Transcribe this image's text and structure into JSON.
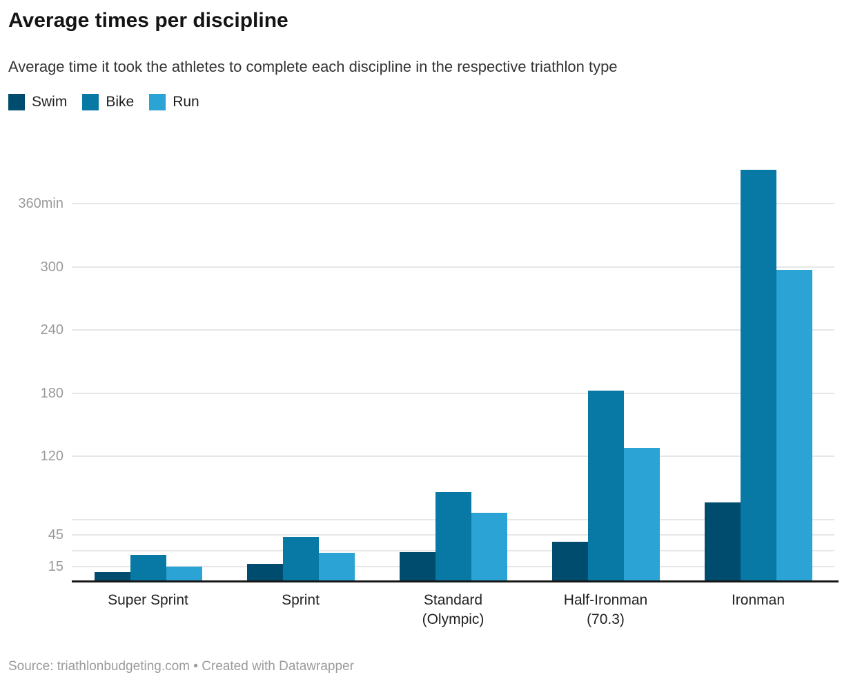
{
  "header": {
    "title": "Average times per discipline",
    "subtitle": "Average time it took the athletes to complete each discipline in the respective triathlon type"
  },
  "footer": {
    "text": "Source: triathlonbudgeting.com • Created with Datawrapper"
  },
  "chart_data": {
    "type": "bar",
    "title": "Average times per discipline",
    "subtitle": "Average time it took the athletes to complete each discipline in the respective triathlon type",
    "unit": "minutes",
    "categories": [
      "Super Sprint",
      "Sprint",
      "Standard\n(Olympic)",
      "Half-Ironman\n(70.3)",
      "Ironman"
    ],
    "series": [
      {
        "name": "Swim",
        "color": "#004c6e",
        "values": [
          10,
          18,
          29,
          39,
          76
        ]
      },
      {
        "name": "Bike",
        "color": "#0878a4",
        "values": [
          26,
          43,
          86,
          182,
          392
        ]
      },
      {
        "name": "Run",
        "color": "#2ba3d4",
        "values": [
          15,
          28,
          66,
          128,
          297
        ]
      }
    ],
    "ylim": [
      0,
      395
    ],
    "grid": true,
    "legend_position": "top-left",
    "y_gridlines": [
      15,
      30,
      45,
      60,
      120,
      180,
      240,
      300,
      360
    ],
    "y_tick_labels": [
      {
        "value": 360,
        "label": "360min"
      },
      {
        "value": 300,
        "label": "300"
      },
      {
        "value": 240,
        "label": "240"
      },
      {
        "value": 180,
        "label": "180"
      },
      {
        "value": 120,
        "label": "120"
      },
      {
        "value": 45,
        "label": "45"
      },
      {
        "value": 15,
        "label": "15"
      }
    ],
    "source": "triathlonbudgeting.com",
    "tool": "Datawrapper"
  }
}
